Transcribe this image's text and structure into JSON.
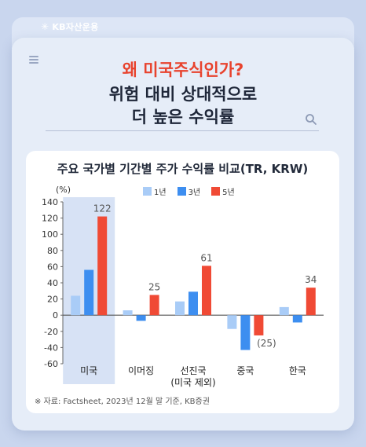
{
  "brand": {
    "name": "KB자산운용"
  },
  "headline": {
    "line1": "왜 미국주식인가?",
    "line2": "위험 대비 상대적으로",
    "line3": "더 높은 수익률"
  },
  "colors": {
    "accent_red": "#e8432e",
    "bar_1y": "#a9ccf7",
    "bar_3y": "#3d8ef0",
    "bar_5y": "#f04a35",
    "highlight_band": "#c9d8f2"
  },
  "chart_data": {
    "type": "bar",
    "title": "주요 국가별 기간별 주가 수익률 비교(TR, KRW)",
    "unit_label": "(%)",
    "categories": [
      "미국",
      "이머징",
      "선진국",
      "중국",
      "한국"
    ],
    "category_sublabels": [
      "",
      "",
      "(미국 제외)",
      "",
      ""
    ],
    "series": [
      {
        "name": "1년",
        "values": [
          24,
          6,
          17,
          -17,
          10
        ]
      },
      {
        "name": "3년",
        "values": [
          56,
          -7,
          29,
          -43,
          -9
        ]
      },
      {
        "name": "5년",
        "values": [
          122,
          25,
          61,
          -25,
          34
        ]
      }
    ],
    "data_labels": [
      "122",
      "25",
      "61",
      "(25)",
      "34"
    ],
    "ylim": [
      -60,
      140
    ],
    "yticks": [
      140,
      120,
      100,
      80,
      60,
      40,
      20,
      0,
      -20,
      -40,
      -60
    ],
    "highlighted_category": "미국",
    "legend_position": "top"
  },
  "footnote": "※ 자료: Factsheet, 2023년 12월 말 기준, KB증권",
  "icons": {
    "menu": "menu-icon",
    "search": "search-icon"
  }
}
